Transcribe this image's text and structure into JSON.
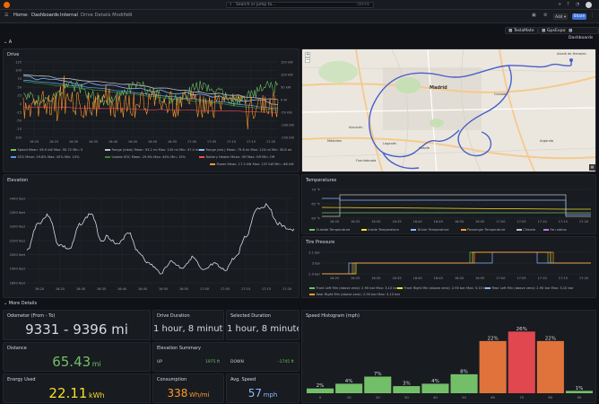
{
  "topbar": {
    "search_placeholder": "Search or jump to...",
    "search_kbd": "ctrl+k"
  },
  "navbar": {
    "home": "Home",
    "dashboards": "Dashboards",
    "internal": "Internal",
    "title": "Drive Details Modified",
    "add": "Add",
    "share": "Share"
  },
  "toolbar": {
    "teslamate": "TeslaMate",
    "gpx": "GpxExport",
    "dashboards": "Dashboards"
  },
  "section_top": "A",
  "section_more": "More Details",
  "drive": {
    "title": "Drive",
    "x_ticks": [
      "16:20",
      "16:25",
      "16:30",
      "16:35",
      "16:40",
      "16:45",
      "16:50",
      "16:55",
      "17:00",
      "17:05",
      "17:10",
      "17:15",
      "17:20"
    ],
    "y_left": [
      "125",
      "100",
      "75",
      "50",
      "25",
      "0",
      "-25",
      "-50",
      "-75",
      "-100"
    ],
    "y_right": [
      "150 kW",
      "100 kW",
      "50 kW",
      "0 W",
      "-50 kW",
      "-100 kW",
      "-150 kW"
    ],
    "legend": [
      {
        "label": "Speed  Mean: 56.9 kW  Max: 90.72  Min: 0",
        "color": "#73bf69"
      },
      {
        "label": "Range (ideal)  Mean: 93.2 mi  Max: 140 mi  Min: 47.4 mi",
        "color": "#c0c0c8"
      },
      {
        "label": "Range (est.)  Mean: 79.8 mi  Max: 124 mi  Min: 35.8 mi",
        "color": "#8ab8ff"
      },
      {
        "label": "SOC  Mean: 29.8%  Max: 45%  Min: 15%",
        "color": "#5794f2"
      },
      {
        "label": "Usable SOC  Mean: 29.6%  Max: 44%  Min: 15%",
        "color": "#37872d"
      },
      {
        "label": "Battery Heater  Mean: Off  Max: Off  Min: Off",
        "color": "#f2495c"
      },
      {
        "label": "Power  Mean: 17.3 kW  Max: 137 kW  Min: -66 kW",
        "color": "#ff9830"
      }
    ]
  },
  "map": {
    "city": "Madrid",
    "places": [
      "Alcalá de Henares",
      "Getafe",
      "Leganés",
      "Fuenlabrada",
      "Móstoles",
      "Alcorcón",
      "Coslada",
      "Arganda"
    ]
  },
  "elevation": {
    "title": "Elevation",
    "y_ticks": [
      "2400 feet",
      "2300 feet",
      "2200 feet",
      "2100 feet",
      "2000 feet",
      "1900 feet",
      "1800 feet"
    ],
    "x_ticks": [
      "16:20",
      "16:25",
      "16:30",
      "16:35",
      "16:40",
      "16:45",
      "16:50",
      "16:55",
      "17:00",
      "17:05",
      "17:10",
      "17:15",
      "17:20"
    ]
  },
  "temperatures": {
    "title": "Temperatures",
    "y_ticks": [
      "70 °F",
      "65 °F",
      "60 °F"
    ],
    "x_ticks": [
      "16:20",
      "16:25",
      "16:30",
      "16:35",
      "16:40",
      "16:45",
      "16:50",
      "16:55",
      "17:00",
      "17:05",
      "17:10",
      "17:15",
      "17:20"
    ],
    "legend": [
      {
        "label": "Outside Temperature",
        "color": "#73bf69"
      },
      {
        "label": "Inside Temperature",
        "color": "#fade2a"
      },
      {
        "label": "Driver Temperature",
        "color": "#8ab8ff"
      },
      {
        "label": "Passenger Temperature",
        "color": "#ff9830"
      },
      {
        "label": "Climate",
        "color": "#c0c0c8"
      },
      {
        "label": "Fan status",
        "color": "#b877d9"
      }
    ]
  },
  "tire": {
    "title": "Tire Pressure",
    "y_ticks": [
      "3.1 bar",
      "3 bar",
      "2.9 bar"
    ],
    "x_ticks": [
      "16:20",
      "16:25",
      "16:30",
      "16:35",
      "16:40",
      "16:45",
      "16:50",
      "16:55",
      "17:00",
      "17:05",
      "17:10",
      "17:15",
      "17:20"
    ],
    "legend": [
      {
        "label": "Front Left  Min (above zero): 2.90 bar  Max: 3.10 bar",
        "color": "#73bf69"
      },
      {
        "label": "Front Right  Min (above zero): 2.90 bar  Max: 3.10 bar",
        "color": "#fade2a"
      },
      {
        "label": "Rear Left  Min (above zero): 2.90 bar  Max: 3.10 bar",
        "color": "#8ab8ff"
      },
      {
        "label": "Rear Right  Min (above zero): 2.90 bar  Max: 3.10 bar",
        "color": "#ff9830"
      }
    ]
  },
  "stats": {
    "odometer": {
      "title": "Odometer (From - To)",
      "value": "9331 - 9396 mi"
    },
    "drive_duration": {
      "title": "Drive Duration",
      "value": "1 hour, 8 minutes"
    },
    "selected_duration": {
      "title": "Selected Duration",
      "value": "1 hour, 8 minutes"
    },
    "distance": {
      "title": "Distance",
      "value": "65.43",
      "unit": "mi",
      "color": "#73bf69"
    },
    "elevation_summary": {
      "title": "Elevation Summary",
      "up_label": "UP",
      "up_value": "1975 ft",
      "down_label": "DOWN",
      "down_value": "-1745 ft"
    },
    "energy": {
      "title": "Energy Used",
      "value": "22.11",
      "unit": "kWh",
      "color": "#fade2a"
    },
    "consumption": {
      "title": "Consumption",
      "value": "338",
      "unit": "Wh/mi",
      "color": "#ff9830"
    },
    "avg_speed": {
      "title": "Avg. Speed",
      "value": "57",
      "unit": "mph",
      "color": "#8ab8ff"
    }
  },
  "chart_data": {
    "type": "bar",
    "title": "Speed Histogram (mph)",
    "categories": [
      "0",
      "10",
      "20",
      "30",
      "40",
      "50",
      "60",
      "70",
      "80",
      "90"
    ],
    "values": [
      2,
      4,
      7,
      3,
      4,
      8,
      22,
      26,
      22,
      1
    ],
    "labels": [
      "2%",
      "4%",
      "7%",
      "3%",
      "4%",
      "8%",
      "22%",
      "26%",
      "22%",
      "1%"
    ],
    "colors": [
      "#73bf69",
      "#73bf69",
      "#73bf69",
      "#73bf69",
      "#73bf69",
      "#73bf69",
      "#e0733c",
      "#e0474f",
      "#e0733c",
      "#73bf69"
    ],
    "ylim": [
      0,
      28
    ]
  }
}
